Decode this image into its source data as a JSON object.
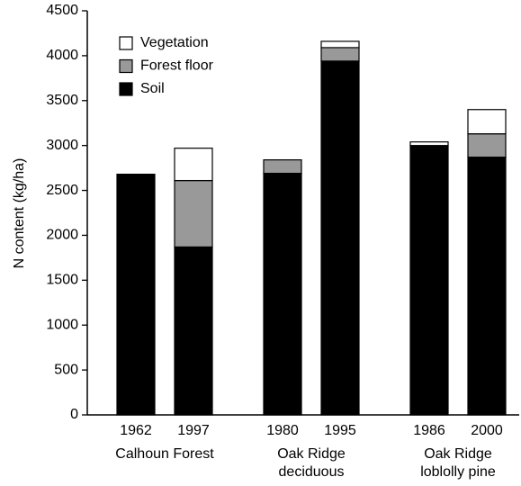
{
  "chart_data": {
    "type": "stacked_bar",
    "y_label": "N content (kg/ha)",
    "categories": [
      "1962",
      "1997",
      "1980",
      "1995",
      "1986",
      "2000"
    ],
    "groups": [
      [
        "Calhoun Forest"
      ],
      [
        "Oak Ridge",
        "deciduous"
      ],
      [
        "Oak Ridge",
        "loblolly pine"
      ]
    ],
    "series": [
      {
        "name": "Soil",
        "color": "#000000",
        "values": [
          2680,
          1870,
          2690,
          3940,
          3000,
          2870
        ]
      },
      {
        "name": "Forest floor",
        "color": "#999999",
        "values": [
          0,
          740,
          150,
          150,
          0,
          260
        ]
      },
      {
        "name": "Vegetation",
        "color": "#ffffff",
        "values": [
          0,
          360,
          0,
          70,
          40,
          270
        ]
      }
    ],
    "ylim": [
      0,
      4500
    ],
    "yticks": [
      0,
      500,
      1000,
      1500,
      2000,
      2500,
      3000,
      3500,
      4000,
      4500
    ],
    "legend": "upper left"
  }
}
